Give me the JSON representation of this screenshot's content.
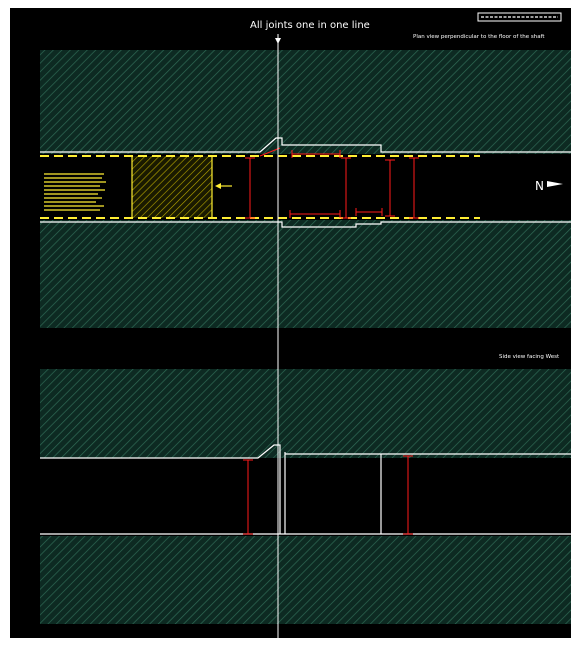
{
  "drawing": {
    "title": "All joints one in one line",
    "badge": "",
    "plan_view": {
      "caption": "Plan view perpendicular to the floor of the shaft",
      "north_label": "N",
      "notes": [
        "",
        "",
        "",
        "",
        "",
        "",
        "",
        "",
        "",
        ""
      ],
      "dimensions": [
        "",
        "",
        "",
        "",
        "",
        "",
        "",
        ""
      ]
    },
    "side_view": {
      "caption": "Side view facing West",
      "dimensions": [
        "",
        ""
      ]
    },
    "colors": {
      "background": "#000000",
      "hatch_fill": "#0d2a22",
      "hatch_line": "#2f6a55",
      "outline": "#ffffff",
      "yellow": "#ffee33",
      "dimension_red": "#ff1a1a"
    }
  }
}
